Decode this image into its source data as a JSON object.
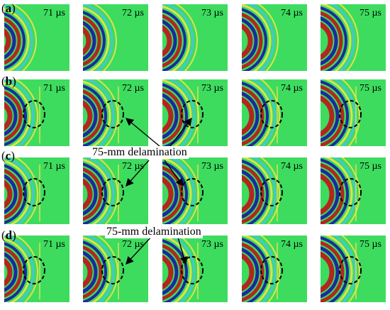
{
  "rows": [
    {
      "label": "a",
      "has_circle": false
    },
    {
      "label": "b",
      "has_circle": true
    },
    {
      "label": "c",
      "has_circle": true
    },
    {
      "label": "d",
      "has_circle": true
    }
  ],
  "times": [
    "71 µs",
    "72 µs",
    "73 µs",
    "74 µs",
    "75 µs"
  ],
  "annotations": [
    {
      "text": "75-mm delamination"
    },
    {
      "text": "75-mm delamination"
    }
  ],
  "colors": {
    "background_field": "#3ddc5f",
    "wave_red": "#b81b1b",
    "wave_blue": "#1c1fa0",
    "wave_yellow": "#e8e24a",
    "wave_cyan": "#47c6d8",
    "circle": "#000000"
  }
}
